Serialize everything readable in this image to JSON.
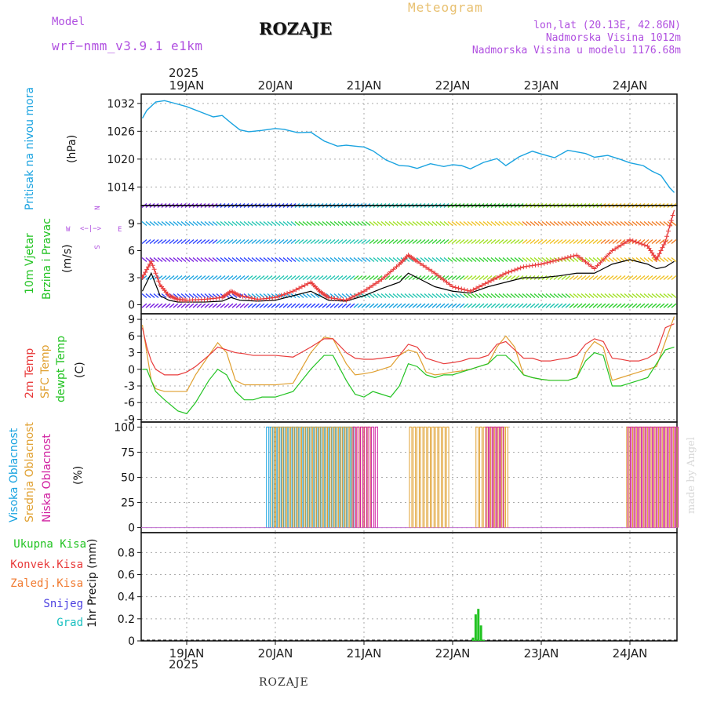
{
  "header": {
    "model_label": "Model",
    "model_name": "wrf−nmm_v3.9.1  e1km",
    "station": "ROZAJE",
    "product": "Meteogram",
    "lonlat": "lon,lat (20.13E, 42.86N)",
    "elevation": "Nadmorska Visina 1012m",
    "model_elevation": "Nadmorska Visina u modelu 1176.68m"
  },
  "footer": {
    "station": "ROZAJE",
    "watermark": "made by Angel"
  },
  "time_axis": {
    "year": "2025",
    "days": [
      "19JAN",
      "20JAN",
      "21JAN",
      "22JAN",
      "23JAN",
      "24JAN"
    ]
  },
  "colors": {
    "pressure": "#1aa3e0",
    "wind_speed": "#000000",
    "wind_gust": "#e83b3b",
    "t2m": "#e83b3b",
    "tsfc": "#e0a030",
    "dewpoint": "#22c322",
    "cloud_high": "#1aa3e0",
    "cloud_mid": "#e0a030",
    "cloud_low": "#d01fa0",
    "precip_total": "#22c322",
    "grid": "#aaaaaa"
  },
  "chart_data": [
    {
      "id": "pressure",
      "type": "line",
      "panel_labels": [
        "Pritisak na nivou mora",
        "(hPa)"
      ],
      "ylabel": "hPa",
      "yticks": [
        1014,
        1020,
        1026,
        1032
      ],
      "ylim": [
        1010,
        1034
      ],
      "x_unit": "days since 19JAN 00",
      "x": [
        -0.5,
        -0.45,
        -0.35,
        -0.25,
        -0.15,
        0,
        0.15,
        0.3,
        0.4,
        0.5,
        0.6,
        0.7,
        0.85,
        1.0,
        1.1,
        1.25,
        1.4,
        1.55,
        1.7,
        1.8,
        1.9,
        2.0,
        2.1,
        2.25,
        2.4,
        2.5,
        2.6,
        2.75,
        2.9,
        3.0,
        3.1,
        3.2,
        3.35,
        3.5,
        3.6,
        3.75,
        3.9,
        4.0,
        4.15,
        4.3,
        4.5,
        4.6,
        4.75,
        4.9,
        5.0,
        5.15,
        5.25,
        5.35,
        5.45,
        5.5
      ],
      "values": [
        1028.8,
        1030.5,
        1032.3,
        1032.6,
        1032.1,
        1031.3,
        1030.2,
        1029.1,
        1029.4,
        1027.8,
        1026.3,
        1025.9,
        1026.2,
        1026.6,
        1026.4,
        1025.7,
        1025.8,
        1023.9,
        1022.8,
        1023.0,
        1022.8,
        1022.6,
        1021.8,
        1019.8,
        1018.6,
        1018.5,
        1018.0,
        1019.0,
        1018.4,
        1018.8,
        1018.6,
        1017.9,
        1019.3,
        1020.1,
        1018.6,
        1020.5,
        1021.7,
        1021.1,
        1020.3,
        1021.9,
        1021.2,
        1020.4,
        1020.8,
        1019.9,
        1019.2,
        1018.6,
        1017.4,
        1016.5,
        1013.8,
        1012.8
      ]
    },
    {
      "id": "wind",
      "type": "line",
      "panel_labels": [
        "10m Vjetar",
        "Brzina i Pravac",
        "(m/s)"
      ],
      "direction_legend": [
        "N",
        "W",
        "E",
        "S"
      ],
      "yticks": [
        0,
        3,
        6,
        9
      ],
      "ylim": [
        -1,
        11
      ],
      "x": [
        -0.5,
        -0.4,
        -0.3,
        -0.2,
        -0.1,
        0,
        0.2,
        0.4,
        0.5,
        0.6,
        0.8,
        1.0,
        1.2,
        1.4,
        1.5,
        1.6,
        1.8,
        2.0,
        2.2,
        2.4,
        2.5,
        2.6,
        2.8,
        3.0,
        3.2,
        3.4,
        3.6,
        3.8,
        4.0,
        4.2,
        4.4,
        4.6,
        4.8,
        5.0,
        5.2,
        5.3,
        5.4,
        5.5
      ],
      "series": [
        {
          "name": "speed",
          "values": [
            1.5,
            3.5,
            1,
            0.5,
            0.3,
            0.3,
            0.3,
            0.4,
            0.8,
            0.5,
            0.4,
            0.5,
            1.0,
            1.5,
            1.0,
            0.5,
            0.4,
            1.0,
            1.8,
            2.5,
            3.5,
            3.0,
            2.0,
            1.5,
            1.3,
            2.0,
            2.5,
            3.0,
            3.0,
            3.2,
            3.5,
            3.5,
            4.5,
            5.0,
            4.5,
            4.0,
            4.2,
            4.8
          ]
        },
        {
          "name": "gust",
          "values": [
            3,
            4.8,
            2.2,
            1.0,
            0.6,
            0.5,
            0.6,
            0.8,
            1.5,
            1.0,
            0.6,
            0.8,
            1.5,
            2.5,
            1.5,
            0.8,
            0.5,
            1.5,
            2.8,
            4.5,
            5.5,
            4.8,
            3.5,
            2.0,
            1.5,
            2.5,
            3.5,
            4.2,
            4.5,
            5.0,
            5.5,
            4.0,
            6.0,
            7.2,
            6.5,
            5.0,
            7.0,
            10.5
          ]
        }
      ],
      "arrow_levels": [
        -0.1,
        1.0,
        3.0,
        5.0,
        7.0,
        9.0,
        11.0
      ]
    },
    {
      "id": "temperature",
      "type": "line",
      "panel_labels": [
        "2m Temp",
        "SFC Temp",
        "dewpt Temp",
        "(C)"
      ],
      "yticks": [
        -9,
        -6,
        -3,
        0,
        3,
        6,
        9
      ],
      "ylim": [
        -9.5,
        10
      ],
      "x": [
        -0.5,
        -0.45,
        -0.4,
        -0.35,
        -0.25,
        -0.1,
        0,
        0.1,
        0.25,
        0.35,
        0.45,
        0.55,
        0.65,
        0.75,
        0.85,
        1.0,
        1.2,
        1.4,
        1.55,
        1.65,
        1.8,
        1.9,
        2.0,
        2.1,
        2.2,
        2.3,
        2.4,
        2.5,
        2.6,
        2.7,
        2.8,
        2.9,
        3.0,
        3.1,
        3.2,
        3.3,
        3.4,
        3.5,
        3.6,
        3.7,
        3.8,
        3.9,
        4.0,
        4.1,
        4.2,
        4.3,
        4.4,
        4.5,
        4.6,
        4.7,
        4.8,
        4.9,
        5.0,
        5.1,
        5.2,
        5.3,
        5.4,
        5.5
      ],
      "series": [
        {
          "name": "2m Temp",
          "values": [
            7.5,
            4,
            1.5,
            0,
            -1,
            -1,
            -0.5,
            0.5,
            2.5,
            4,
            3.5,
            3,
            2.8,
            2.5,
            2.5,
            2.5,
            2.2,
            4,
            5.5,
            5.5,
            3,
            2,
            1.8,
            1.8,
            2,
            2.2,
            2.5,
            4.5,
            4,
            2,
            1.5,
            1,
            1.2,
            1.5,
            2,
            2,
            2.5,
            4.5,
            5,
            3.5,
            2,
            2,
            1.5,
            1.5,
            1.8,
            2,
            2.5,
            4.5,
            5.5,
            5,
            2,
            1.8,
            1.5,
            1.5,
            2,
            3,
            7.5,
            8.2
          ]
        },
        {
          "name": "SFC Temp",
          "values": [
            8,
            3,
            -2,
            -3.5,
            -4,
            -4,
            -4,
            -1,
            2.5,
            4.8,
            3,
            -2,
            -2.8,
            -2.8,
            -2.8,
            -2.8,
            -2.5,
            3,
            5.8,
            5.5,
            1,
            -1,
            -0.8,
            -0.5,
            0,
            0.5,
            2.5,
            3.5,
            3,
            -0.5,
            -1,
            -0.8,
            -0.5,
            -0.3,
            0,
            0.5,
            1,
            4,
            6,
            4,
            -1,
            -1.5,
            -1.8,
            -2,
            -2,
            -2,
            -1.5,
            3,
            5,
            4,
            -2,
            -1.5,
            -1,
            -0.5,
            0,
            0.5,
            5,
            9.5
          ]
        },
        {
          "name": "dewpt Temp",
          "values": [
            0,
            0,
            -2,
            -4,
            -5.5,
            -7.5,
            -8,
            -6,
            -2,
            0,
            -1,
            -4,
            -5.5,
            -5.5,
            -5,
            -5,
            -4,
            0,
            2.5,
            2.5,
            -2,
            -4.5,
            -5,
            -4,
            -4.5,
            -5,
            -3,
            1,
            0.5,
            -1,
            -1.5,
            -1,
            -1,
            -0.5,
            0,
            0.5,
            1,
            2.5,
            2.5,
            1,
            -1,
            -1.5,
            -1.8,
            -2,
            -2,
            -2,
            -1.5,
            1.5,
            3,
            2.5,
            -3,
            -3,
            -2.5,
            -2,
            -1.5,
            1,
            3.5,
            4
          ]
        }
      ]
    },
    {
      "id": "clouds",
      "type": "bar",
      "panel_labels": [
        "Visoka Oblacnost",
        "Srednja Oblacnost",
        "Niska Oblacnost",
        "(%)"
      ],
      "yticks": [
        0,
        25,
        50,
        75,
        100
      ],
      "ylim": [
        -5,
        105
      ],
      "series": [
        {
          "name": "Visoka Oblacnost",
          "values": [
            100
          ],
          "x_range": [
            0.9,
            1.9
          ]
        },
        {
          "name": "Srednja Oblacnost",
          "values": [
            100
          ],
          "x_ranges": [
            [
              0.95,
              2.05
            ],
            [
              2.5,
              2.95
            ],
            [
              3.25,
              3.6
            ],
            [
              4.95,
              5.5
            ]
          ]
        },
        {
          "name": "Niska Oblacnost",
          "values": [
            100
          ],
          "x_ranges": [
            [
              1.85,
              2.1
            ],
            [
              3.35,
              3.55
            ],
            [
              4.95,
              5.5
            ]
          ]
        }
      ]
    },
    {
      "id": "precip",
      "type": "bar",
      "panel_labels": [
        "1hr Precip (mm)"
      ],
      "legend": [
        "Ukupna Kisa",
        "Konvek.Kisa",
        "Zaledj.Kisa",
        "Snijeg",
        "Grad"
      ],
      "yticks": [
        0,
        0.2,
        0.4,
        0.6,
        0.8
      ],
      "ylim": [
        0,
        0.98
      ],
      "x": [
        3.23,
        3.26,
        3.29,
        3.32,
        3.35
      ],
      "values": [
        0.03,
        0.24,
        0.29,
        0.14,
        0.01
      ]
    }
  ]
}
